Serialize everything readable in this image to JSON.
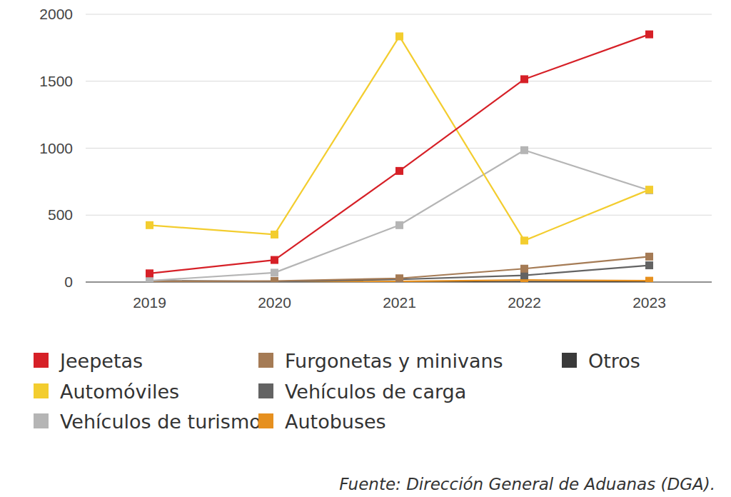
{
  "chart_data": {
    "type": "line",
    "categories": [
      "2019",
      "2020",
      "2021",
      "2022",
      "2023"
    ],
    "series": [
      {
        "name": "Jeepetas",
        "color": "#d62027",
        "values": [
          65,
          165,
          830,
          1515,
          1850
        ]
      },
      {
        "name": "Automóviles",
        "color": "#f3cd2f",
        "values": [
          425,
          355,
          1835,
          310,
          690
        ]
      },
      {
        "name": "Vehículos de turismo",
        "color": "#b5b5b5",
        "values": [
          10,
          70,
          425,
          985,
          685
        ]
      },
      {
        "name": "Furgonetas y minivans",
        "color": "#a57b55",
        "values": [
          5,
          8,
          28,
          100,
          190
        ]
      },
      {
        "name": "Vehículos de carga",
        "color": "#636363",
        "values": [
          10,
          3,
          20,
          50,
          125
        ]
      },
      {
        "name": "Autobuses",
        "color": "#e6901f",
        "values": [
          2,
          2,
          5,
          15,
          10
        ]
      },
      {
        "name": "Otros",
        "color": "#3a3a3a",
        "values": [
          0,
          0,
          0,
          2,
          2
        ]
      }
    ],
    "ylim": [
      0,
      2000
    ],
    "yticks": [
      0,
      500,
      1000,
      1500,
      2000
    ],
    "grid": true,
    "legend": "bottom",
    "marker": "square",
    "source": "Fuente: Dirección General de Aduanas (DGA)."
  }
}
